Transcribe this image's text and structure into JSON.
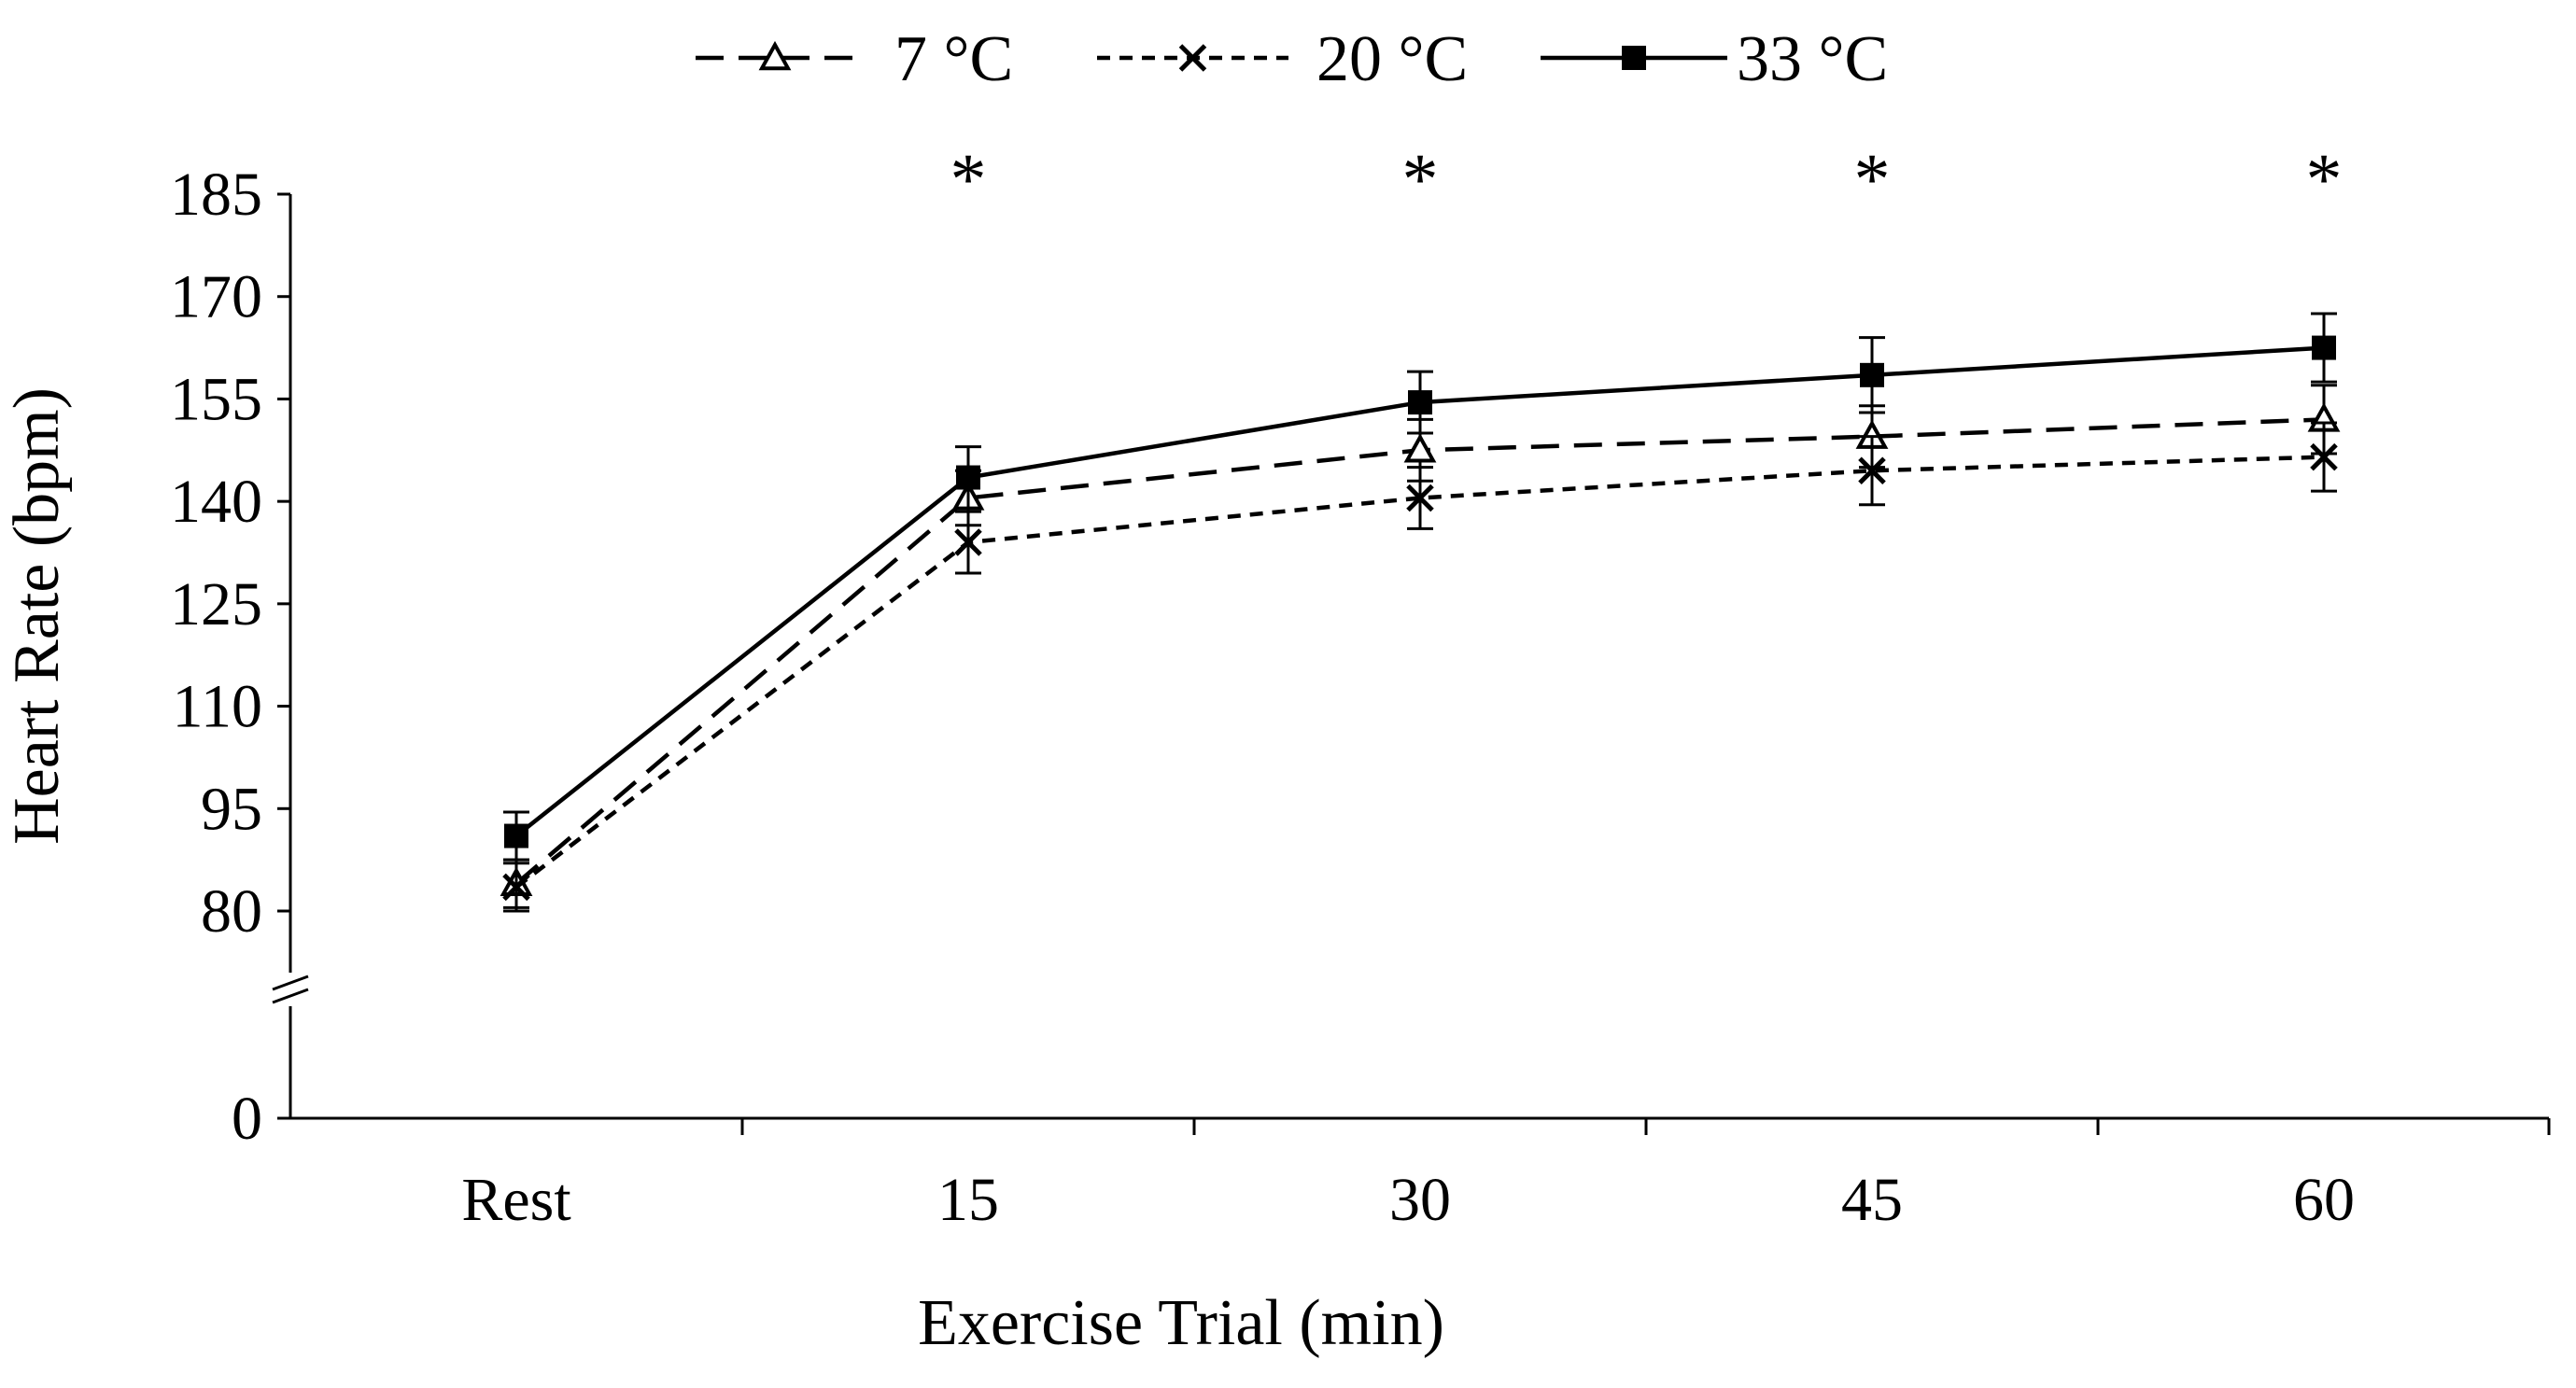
{
  "chart_data": {
    "type": "line",
    "title": "",
    "xlabel": "Exercise Trial (min)",
    "ylabel": "Heart Rate (bpm)",
    "categories": [
      "Rest",
      "15",
      "30",
      "45",
      "60"
    ],
    "y_ticks": [
      185,
      170,
      155,
      140,
      125,
      110,
      95,
      80,
      0
    ],
    "y_axis_break": true,
    "ylim": [
      0,
      185
    ],
    "legend_position": "top-center",
    "significance_marker": "*",
    "significance_categories": [
      "15",
      "30",
      "45",
      "60"
    ],
    "series": [
      {
        "name": "7 °C",
        "line_style": "dashed",
        "marker": "open-triangle",
        "values": [
          84,
          140.5,
          147.5,
          149.5,
          152
        ],
        "errors": [
          3.5,
          4,
          4.5,
          4.5,
          5
        ]
      },
      {
        "name": "20 °C",
        "line_style": "dotted",
        "marker": "x",
        "values": [
          83.5,
          134,
          140.5,
          144.5,
          146.5
        ],
        "errors": [
          3.5,
          4.5,
          4.5,
          5,
          5
        ]
      },
      {
        "name": "33 °C",
        "line_style": "solid",
        "marker": "filled-square",
        "values": [
          91,
          143.5,
          154.5,
          158.5,
          162.5
        ],
        "errors": [
          3.5,
          4.5,
          4.5,
          5.5,
          5
        ]
      }
    ],
    "colors": {
      "line": "#000000",
      "background": "#ffffff"
    }
  }
}
